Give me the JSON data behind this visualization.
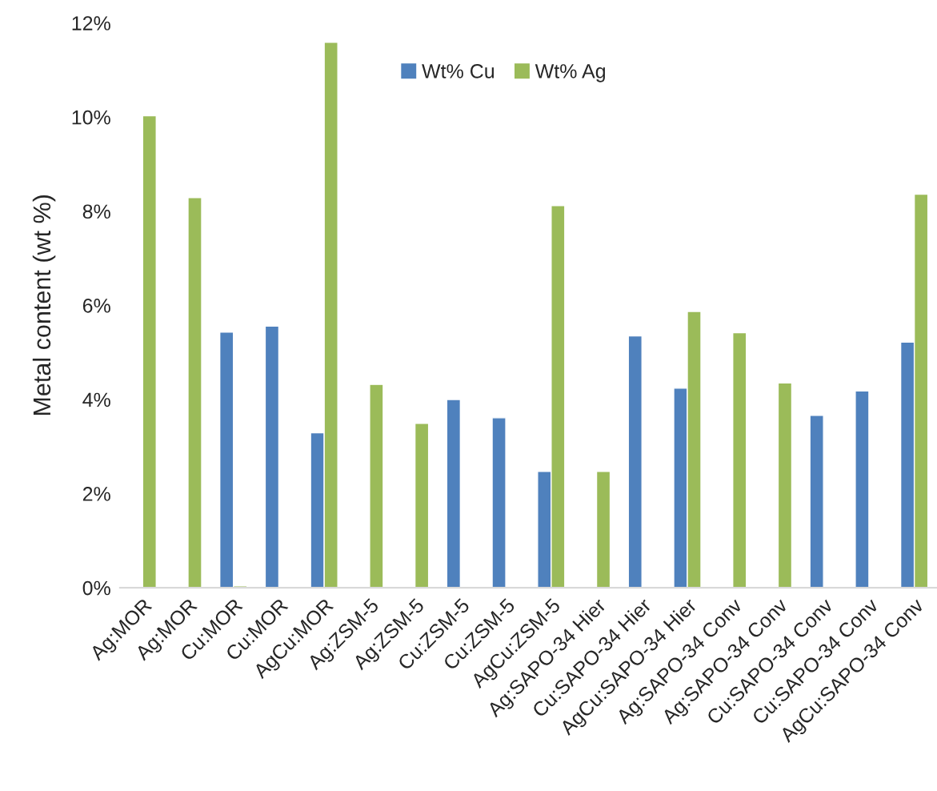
{
  "chart_data": {
    "type": "bar",
    "ylabel": "Metal content (wt %)",
    "categories": [
      "Ag:MOR",
      "Ag:MOR",
      "Cu:MOR",
      "Cu:MOR",
      "AgCu:MOR",
      "Ag:ZSM-5",
      "Ag:ZSM-5",
      "Cu:ZSM-5",
      "Cu:ZSM-5",
      "AgCu:ZSM-5",
      "Ag:SAPO-34 Hier",
      "Cu:SAPO-34 Hier",
      "AgCu:SAPO-34 Hier",
      "Ag:SAPO-34 Conv",
      "Ag:SAPO-34 Conv",
      "Cu:SAPO-34 Conv",
      "Cu:SAPO-34 Conv",
      "AgCu:SAPO-34 Conv"
    ],
    "series": [
      {
        "name": "Wt% Cu",
        "color": "#4f81bd",
        "values": [
          null,
          null,
          5.43,
          5.56,
          3.29,
          null,
          null,
          4.0,
          3.61,
          2.47,
          null,
          5.35,
          4.24,
          null,
          null,
          3.66,
          4.18,
          5.22
        ]
      },
      {
        "name": "Wt% Ag",
        "color": "#9bbb59",
        "values": [
          10.03,
          8.29,
          0.04,
          null,
          11.59,
          4.32,
          3.49,
          null,
          null,
          8.12,
          2.47,
          null,
          5.87,
          5.42,
          4.35,
          null,
          null,
          8.36
        ]
      }
    ],
    "ylim": [
      0,
      12
    ],
    "yticks": [
      {
        "value": 0,
        "label": "0%"
      },
      {
        "value": 2,
        "label": "2%"
      },
      {
        "value": 4,
        "label": "4%"
      },
      {
        "value": 6,
        "label": "6%"
      },
      {
        "value": 8,
        "label": "8%"
      },
      {
        "value": 10,
        "label": "10%"
      },
      {
        "value": 12,
        "label": "12%"
      }
    ],
    "grid": false,
    "legend": "top"
  }
}
